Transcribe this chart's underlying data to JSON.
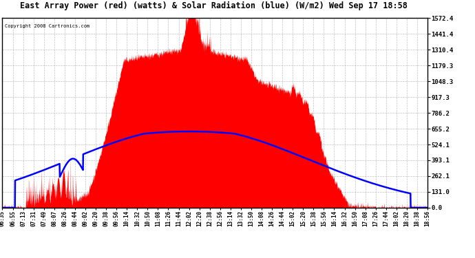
{
  "title": "East Array Power (red) (watts) & Solar Radiation (blue) (W/m2) Wed Sep 17 18:58",
  "copyright": "Copyright 2008 Cartronics.com",
  "ymax": 1572.4,
  "ymin": 0.0,
  "yticks": [
    0.0,
    131.0,
    262.1,
    393.1,
    524.1,
    655.2,
    786.2,
    917.3,
    1048.3,
    1179.3,
    1310.4,
    1441.4,
    1572.4
  ],
  "bg_color": "#ffffff",
  "grid_color": "#b0b0b0",
  "red_color": "#ff0000",
  "blue_color": "#0000ff",
  "x_labels": [
    "06:35",
    "06:55",
    "07:13",
    "07:31",
    "07:49",
    "08:07",
    "08:26",
    "08:44",
    "09:02",
    "09:20",
    "09:38",
    "09:56",
    "10:14",
    "10:32",
    "10:50",
    "11:08",
    "11:26",
    "11:44",
    "12:02",
    "12:20",
    "12:38",
    "12:56",
    "13:14",
    "13:32",
    "13:50",
    "14:08",
    "14:26",
    "14:44",
    "15:02",
    "15:20",
    "15:38",
    "15:56",
    "16:14",
    "16:32",
    "16:50",
    "17:08",
    "17:26",
    "17:44",
    "18:02",
    "18:20",
    "18:38",
    "18:56"
  ],
  "n_points": 2000
}
